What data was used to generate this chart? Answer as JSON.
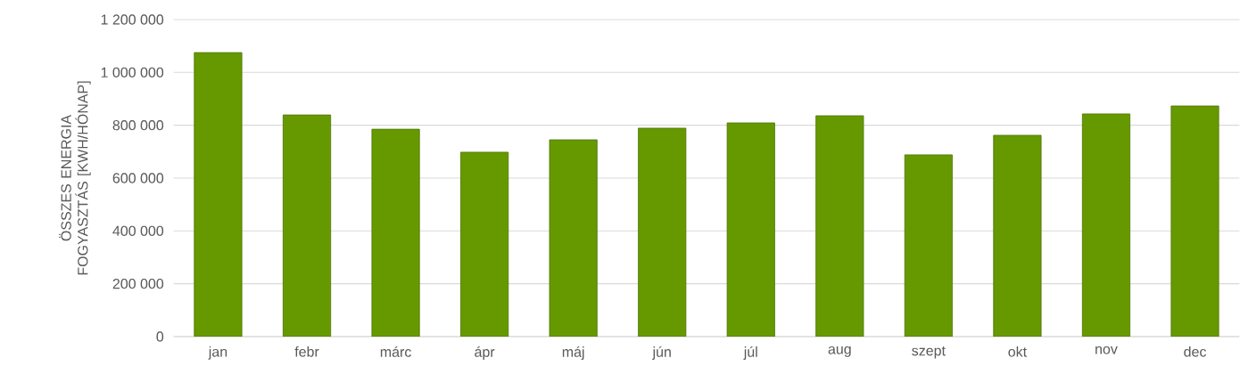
{
  "chart_data": {
    "type": "bar",
    "ylabel": "ÖSSZES ENERGIA FOGYASZTÁS [KWH/HÓNAP]",
    "categories": [
      "jan",
      "febr",
      "márc",
      "ápr",
      "máj",
      "jún",
      "júl",
      "aug",
      "szept",
      "okt",
      "nov",
      "dec"
    ],
    "values": [
      1075000,
      839000,
      785000,
      698000,
      745000,
      789000,
      809000,
      836000,
      688000,
      762000,
      843000,
      873000
    ],
    "color": "#669900",
    "ylim": [
      0,
      1200000
    ],
    "yticks": [
      {
        "value": 0,
        "label": "0"
      },
      {
        "value": 200000,
        "label": "200 000"
      },
      {
        "value": 400000,
        "label": "400 000"
      },
      {
        "value": 600000,
        "label": "600 000"
      },
      {
        "value": 800000,
        "label": "800 000"
      },
      {
        "value": 1000000,
        "label": "1 000 000"
      },
      {
        "value": 1200000,
        "label": "1 200 000"
      }
    ],
    "grid": "y"
  }
}
